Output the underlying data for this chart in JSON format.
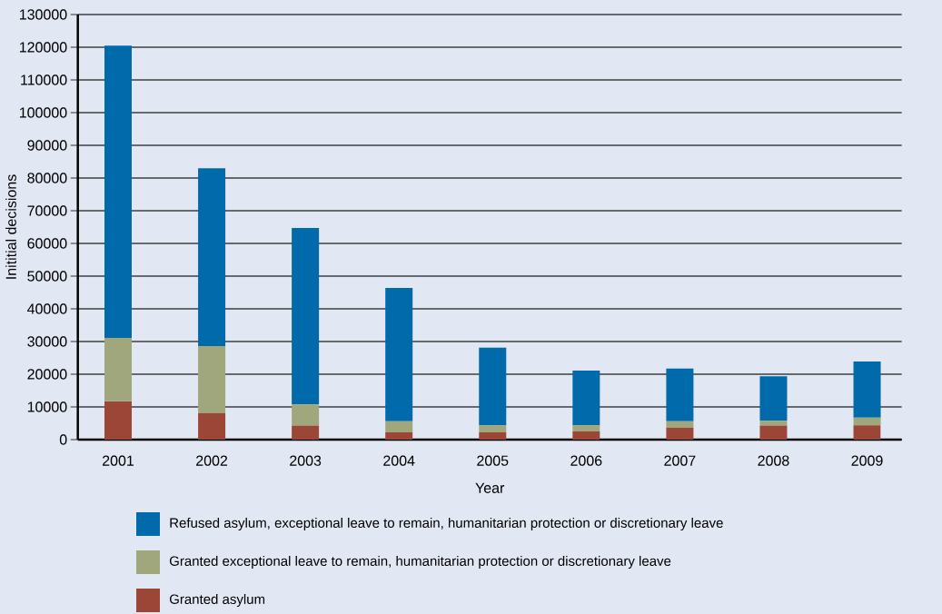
{
  "chart_data": {
    "type": "bar",
    "stacked": true,
    "xlabel": "Year",
    "ylabel": "Inititial decisions",
    "categories": [
      "2001",
      "2002",
      "2003",
      "2004",
      "2005",
      "2006",
      "2007",
      "2008",
      "2009"
    ],
    "series": [
      {
        "name": "Granted asylum",
        "color": "#9b4637",
        "values": [
          11700,
          8100,
          4200,
          2200,
          2200,
          2500,
          3600,
          4200,
          4400
        ]
      },
      {
        "name": "Granted exceptional leave to remain, humanitarian protection or discretionary leave",
        "color": "#a0a77d",
        "values": [
          19400,
          20500,
          6600,
          3400,
          2200,
          1900,
          2000,
          1600,
          2300
        ]
      },
      {
        "name": "Refused asylum, exceptional leave to remain, humanitarian protection or discretionary leave",
        "color": "#006aab",
        "values": [
          89400,
          54400,
          53900,
          40800,
          23700,
          16700,
          16100,
          13600,
          17200
        ]
      }
    ],
    "ylim": [
      0,
      130000
    ],
    "yticks": [
      0,
      10000,
      20000,
      30000,
      40000,
      50000,
      60000,
      70000,
      80000,
      90000,
      100000,
      110000,
      120000,
      130000
    ],
    "grid": "y",
    "legend": "bottom"
  }
}
